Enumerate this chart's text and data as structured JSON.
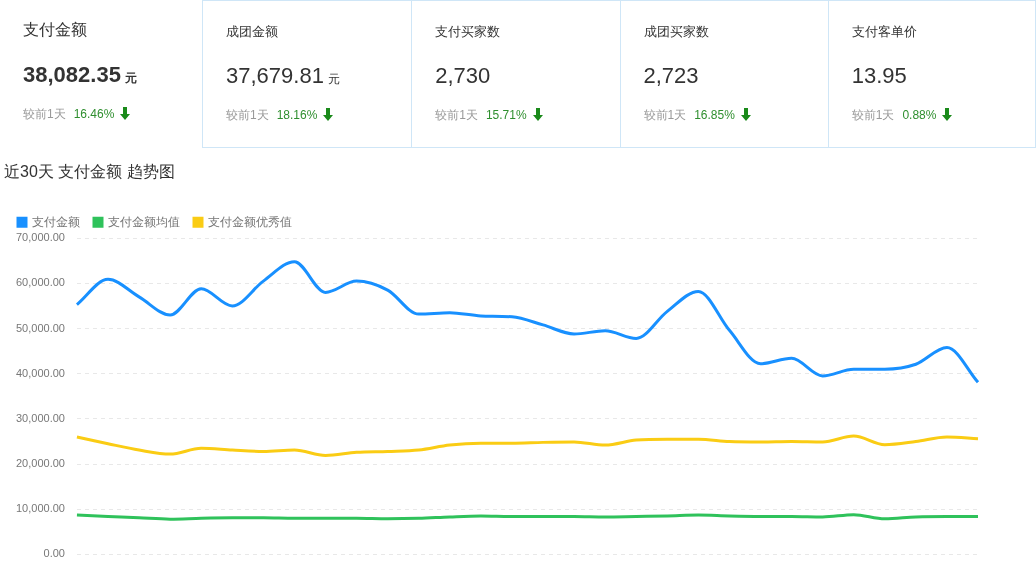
{
  "chart_data": [
    {
      "type": "other",
      "title": "支付金额",
      "annotations": [
        "38,082.35",
        "元",
        "较前1天",
        "16.46%"
      ]
    },
    {
      "type": "other",
      "title": "成团金额",
      "annotations": [
        "37,679.81",
        "元",
        "较前1天",
        "18.16%"
      ]
    },
    {
      "type": "other",
      "title": "支付买家数",
      "annotations": [
        "2,730",
        null,
        "较前1天",
        "15.71%"
      ]
    },
    {
      "type": "other",
      "title": "成团买家数",
      "annotations": [
        "2,723",
        null,
        "较前1天",
        "16.85%"
      ]
    },
    {
      "type": "other",
      "title": "支付客单价",
      "annotations": [
        "13.95",
        null,
        "较前1天",
        "0.88%"
      ]
    },
    {
      "type": "line",
      "title": "近30天 支付金额 趋势图",
      "categories": [
        null,
        null,
        null,
        null,
        null,
        null,
        null,
        null,
        null,
        null,
        null,
        null,
        null,
        null,
        null,
        null,
        null,
        null,
        null,
        null,
        null,
        null,
        null,
        null,
        null,
        null,
        null,
        null,
        null,
        null
      ],
      "series": [
        {
          "name": "支付金额",
          "color": "#1890ff",
          "values": [
            55300,
            60900,
            57000,
            53000,
            58800,
            55000,
            60500,
            64800,
            58000,
            60500,
            58500,
            53200,
            53500,
            52800,
            52600,
            50800,
            48800,
            49500,
            47800,
            53800,
            58200,
            49600,
            42200,
            43400,
            39500,
            41000,
            41000,
            42100,
            45800,
            38100
          ]
        },
        {
          "name": "支付金额均值",
          "color": "#2fc25b",
          "values": [
            8700,
            8400,
            8100,
            7800,
            8000,
            8100,
            8100,
            8000,
            8000,
            8000,
            7900,
            8000,
            8300,
            8500,
            8400,
            8400,
            8400,
            8300,
            8400,
            8500,
            8700,
            8500,
            8400,
            8400,
            8300,
            8800,
            7900,
            8300,
            8400,
            8400
          ]
        },
        {
          "name": "支付金额优秀值",
          "color": "#facc14",
          "values": [
            26000,
            24500,
            23100,
            22200,
            23500,
            23100,
            22800,
            23100,
            21900,
            22600,
            22800,
            23100,
            24200,
            24600,
            24600,
            24800,
            24900,
            24200,
            25300,
            25500,
            25500,
            25000,
            24900,
            25000,
            24900,
            26200,
            24300,
            25000,
            26000,
            25600
          ]
        }
      ],
      "ylim": [
        0,
        70000
      ],
      "yticks": [
        {
          "value": 0,
          "label": "0.00"
        },
        {
          "value": 10000,
          "label": "10,000.00"
        },
        {
          "value": 20000,
          "label": "20,000.00"
        },
        {
          "value": 30000,
          "label": "30,000.00"
        },
        {
          "value": 40000,
          "label": "40,000.00"
        },
        {
          "value": 50000,
          "label": "50,000.00"
        },
        {
          "value": 60000,
          "label": "60,000.00"
        },
        {
          "value": 70000,
          "label": "70,000.00"
        }
      ],
      "grid": "y",
      "legend": "top left",
      "marker": "none",
      "line_style": "solid",
      "tick_labels": "y"
    }
  ]
}
